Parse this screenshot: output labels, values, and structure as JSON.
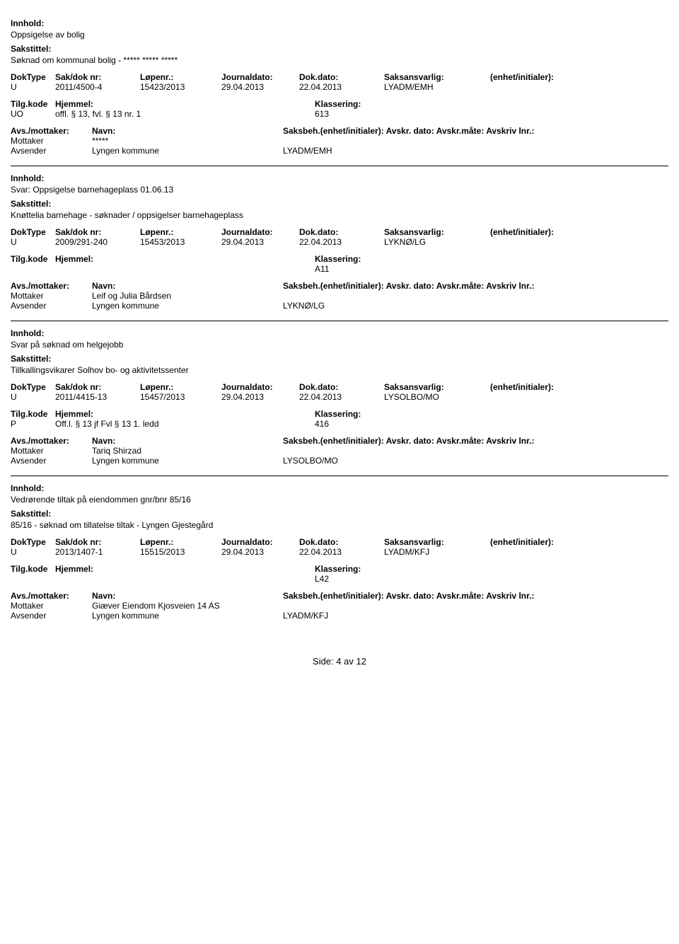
{
  "labels": {
    "innhold": "Innhold:",
    "sakstittel": "Sakstittel:",
    "doktype": "DokType",
    "sakdok": "Sak/dok nr:",
    "lopenr": "Løpenr.:",
    "journaldato": "Journaldato:",
    "dokdato": "Dok.dato:",
    "saksansvarlig": "Saksansvarlig:",
    "enhet": "(enhet/initialer):",
    "tilgkode": "Tilg.kode",
    "hjemmel": "Hjemmel:",
    "klassering": "Klassering:",
    "avsmottaker": "Avs./mottaker:",
    "navn": "Navn:",
    "saksbeh_line": "Saksbeh.(enhet/initialer): Avskr. dato: Avskr.måte: Avskriv lnr.:",
    "mottaker": "Mottaker",
    "avsender": "Avsender"
  },
  "records": [
    {
      "innhold": "Oppsigelse av bolig",
      "sakstittel": "Søknad om kommunal bolig - ***** ***** *****",
      "doktype": "U",
      "sakdok": "2011/4500-4",
      "lopenr": "15423/2013",
      "journaldato": "29.04.2013",
      "dokdato": "22.04.2013",
      "saksansvarlig": "LYADM/EMH",
      "tilgkode": "UO",
      "hjemmel": "offl. § 13, fvl. § 13 nr. 1",
      "klassering": "613",
      "parties": [
        {
          "role": "Mottaker",
          "name": "*****",
          "code": ""
        },
        {
          "role": "Avsender",
          "name": "Lyngen kommune",
          "code": "LYADM/EMH"
        }
      ]
    },
    {
      "innhold": "Svar: Oppsigelse barnehageplass 01.06.13",
      "sakstittel": "Knøttelia barnehage - søknader / oppsigelser barnehageplass",
      "doktype": "U",
      "sakdok": "2009/291-240",
      "lopenr": "15453/2013",
      "journaldato": "29.04.2013",
      "dokdato": "22.04.2013",
      "saksansvarlig": "LYKNØ/LG",
      "tilgkode": "",
      "hjemmel": "",
      "klassering": "A11",
      "parties": [
        {
          "role": "Mottaker",
          "name": "Leif og Julia Bårdsen",
          "code": ""
        },
        {
          "role": "Avsender",
          "name": "Lyngen kommune",
          "code": "LYKNØ/LG"
        }
      ]
    },
    {
      "innhold": "Svar på søknad om helgejobb",
      "sakstittel": "Tillkallingsvikarer Solhov bo- og aktivitetssenter",
      "doktype": "U",
      "sakdok": "2011/4415-13",
      "lopenr": "15457/2013",
      "journaldato": "29.04.2013",
      "dokdato": "22.04.2013",
      "saksansvarlig": "LYSOLBO/MO",
      "tilgkode": "P",
      "hjemmel": "Off.l. § 13 jf Fvl § 13 1. ledd",
      "klassering": "416",
      "parties": [
        {
          "role": "Mottaker",
          "name": "Tariq Shirzad",
          "code": ""
        },
        {
          "role": "Avsender",
          "name": "Lyngen kommune",
          "code": "LYSOLBO/MO"
        }
      ]
    },
    {
      "innhold": "Vedrørende tiltak på eiendommen gnr/bnr 85/16",
      "sakstittel": "85/16 - søknad om tillatelse tiltak - Lyngen Gjestegård",
      "doktype": "U",
      "sakdok": "2013/1407-1",
      "lopenr": "15515/2013",
      "journaldato": "29.04.2013",
      "dokdato": "22.04.2013",
      "saksansvarlig": "LYADM/KFJ",
      "tilgkode": "",
      "hjemmel": "",
      "klassering": "L42",
      "parties": [
        {
          "role": "Mottaker",
          "name": "Giæver Eiendom Kjosveien 14 AS",
          "code": ""
        },
        {
          "role": "Avsender",
          "name": "Lyngen kommune",
          "code": "LYADM/KFJ"
        }
      ]
    }
  ],
  "footer": "Side: 4 av 12"
}
